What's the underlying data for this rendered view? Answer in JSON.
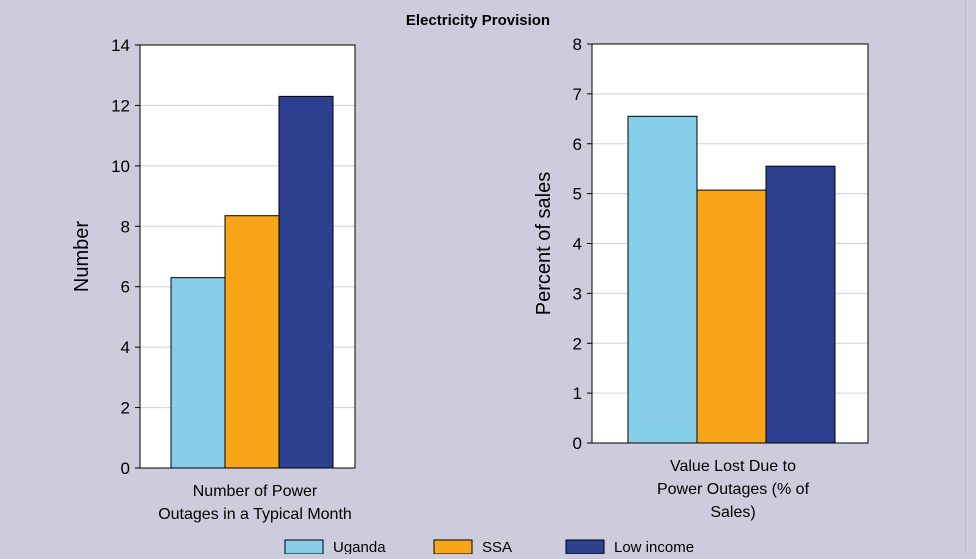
{
  "title": "Electricity Provision",
  "colors": {
    "background": "#ccccdc",
    "plot_bg": "#ffffff",
    "gridline": "#d0d0dc",
    "uganda": "#87ceeb",
    "ssa": "#f9a51a",
    "low_income": "#2e3f8f"
  },
  "chart_data": [
    {
      "type": "bar",
      "title": "",
      "categories": [
        "Number of Power Outages in a Typical Month"
      ],
      "xlabel_lines": [
        "Number of Power",
        "Outages in a Typical Month"
      ],
      "ylabel": "Number",
      "ylim": [
        0,
        14
      ],
      "yticks": [
        0,
        2,
        4,
        6,
        8,
        10,
        12,
        14
      ],
      "grid": true,
      "series": [
        {
          "name": "Uganda",
          "values": [
            6.3
          ]
        },
        {
          "name": "SSA",
          "values": [
            8.35
          ]
        },
        {
          "name": "Low income",
          "values": [
            12.3
          ]
        }
      ]
    },
    {
      "type": "bar",
      "title": "",
      "categories": [
        "Value Lost Due to Power Outages (% of Sales)"
      ],
      "xlabel_lines": [
        "Value Lost Due to",
        "Power Outages (% of",
        "Sales)"
      ],
      "ylabel": "Percent of sales",
      "ylim": [
        0,
        8
      ],
      "yticks": [
        0,
        1,
        2,
        3,
        4,
        5,
        6,
        7,
        8
      ],
      "grid": true,
      "series": [
        {
          "name": "Uganda",
          "values": [
            6.55
          ]
        },
        {
          "name": "SSA",
          "values": [
            5.07
          ]
        },
        {
          "name": "Low income",
          "values": [
            5.55
          ]
        }
      ]
    }
  ],
  "legend": {
    "placement": "bottom",
    "items": [
      {
        "label": "Uganda",
        "color": "#87ceeb"
      },
      {
        "label": "SSA",
        "color": "#f9a51a"
      },
      {
        "label": "Low income",
        "color": "#2e3f8f"
      }
    ]
  }
}
